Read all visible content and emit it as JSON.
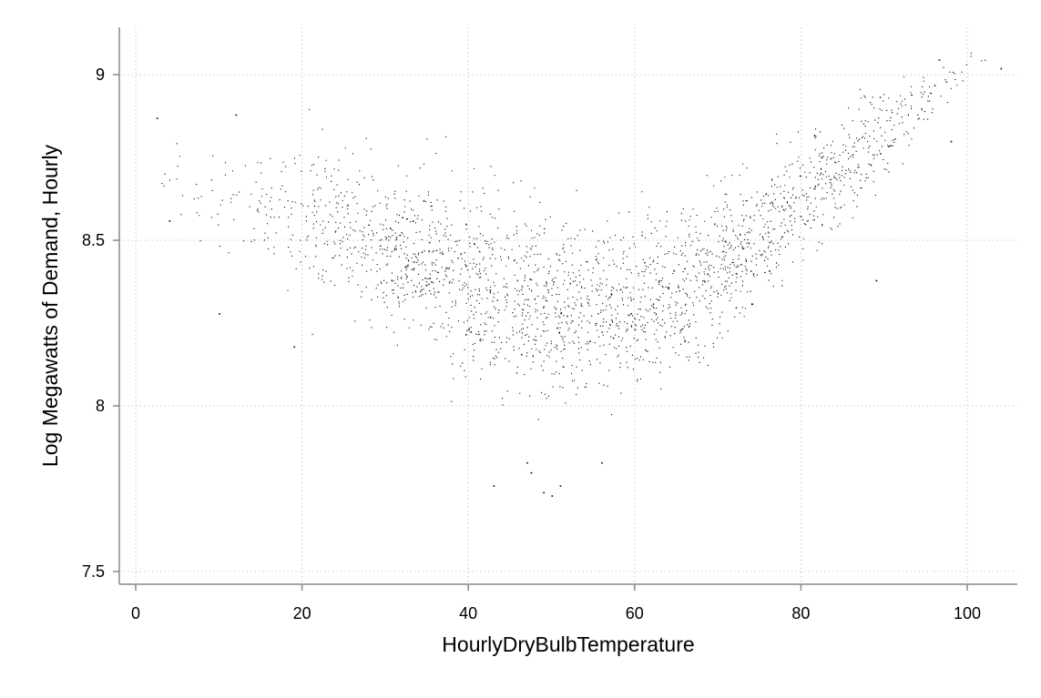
{
  "chart_data": {
    "type": "scatter",
    "title": "",
    "xlabel": "HourlyDryBulbTemperature",
    "ylabel": "Log Megawatts of Demand, Hourly",
    "xlim": [
      0,
      105
    ],
    "ylim": [
      7.45,
      9.2
    ],
    "x_ticks": [
      0,
      20,
      40,
      60,
      80,
      100
    ],
    "x_tick_labels": [
      "0",
      "20",
      "40",
      "60",
      "80",
      "100"
    ],
    "y_ticks": [
      7.5,
      8,
      8.5,
      9
    ],
    "y_tick_labels": [
      "7.5",
      "8",
      "8.5",
      "9"
    ],
    "grid": true,
    "grid_style": "dotted",
    "marker_color": "#000000",
    "series": [
      {
        "name": "",
        "density_profile": {
          "x": [
            3,
            10,
            20,
            30,
            40,
            50,
            60,
            70,
            80,
            90,
            97,
            102
          ],
          "center": [
            8.72,
            8.62,
            8.58,
            8.47,
            8.38,
            8.3,
            8.29,
            8.42,
            8.62,
            8.84,
            8.97,
            9.05
          ],
          "spread": [
            0.14,
            0.2,
            0.24,
            0.28,
            0.3,
            0.3,
            0.28,
            0.26,
            0.22,
            0.16,
            0.1,
            0.05
          ],
          "relative_density": [
            0.03,
            0.12,
            0.35,
            0.85,
            1.0,
            1.0,
            0.95,
            0.9,
            0.75,
            0.45,
            0.15,
            0.02
          ]
        },
        "outliers": [
          [
            2.5,
            8.87
          ],
          [
            4,
            8.56
          ],
          [
            10,
            8.28
          ],
          [
            12,
            8.88
          ],
          [
            19,
            8.18
          ],
          [
            43,
            7.76
          ],
          [
            47,
            7.83
          ],
          [
            47.5,
            7.8
          ],
          [
            49,
            7.74
          ],
          [
            50,
            7.73
          ],
          [
            51,
            7.76
          ],
          [
            56,
            7.83
          ],
          [
            89,
            8.38
          ],
          [
            98,
            8.8
          ],
          [
            104,
            9.02
          ]
        ]
      }
    ]
  }
}
